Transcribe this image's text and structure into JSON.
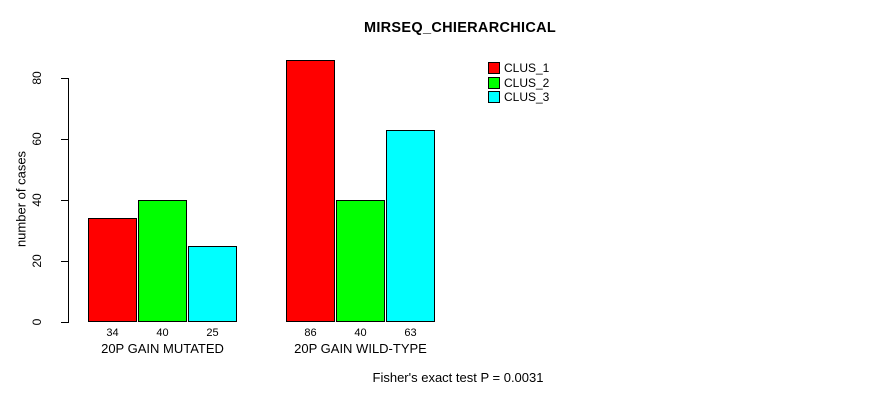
{
  "chart_data": {
    "type": "bar",
    "title": "MIRSEQ_CHIERARCHICAL",
    "ylabel": "number of cases",
    "xlabel": "",
    "footnote": "Fisher's exact test P = 0.0031",
    "yticks": [
      0,
      20,
      40,
      60,
      80
    ],
    "ylim": [
      0,
      86
    ],
    "grid": false,
    "legend_position": "top-right",
    "categories": [
      "20P GAIN MUTATED",
      "20P GAIN WILD-TYPE"
    ],
    "series": [
      {
        "name": "CLUS_1",
        "color": "#FF0000",
        "values": [
          34,
          86
        ]
      },
      {
        "name": "CLUS_2",
        "color": "#00FF00",
        "values": [
          40,
          40
        ]
      },
      {
        "name": "CLUS_3",
        "color": "#00FFFF",
        "values": [
          25,
          63
        ]
      }
    ],
    "bar_value_labels_shown": true
  },
  "colors": {
    "background": "#FFFFFF",
    "axis": "#000000",
    "text": "#000000"
  }
}
